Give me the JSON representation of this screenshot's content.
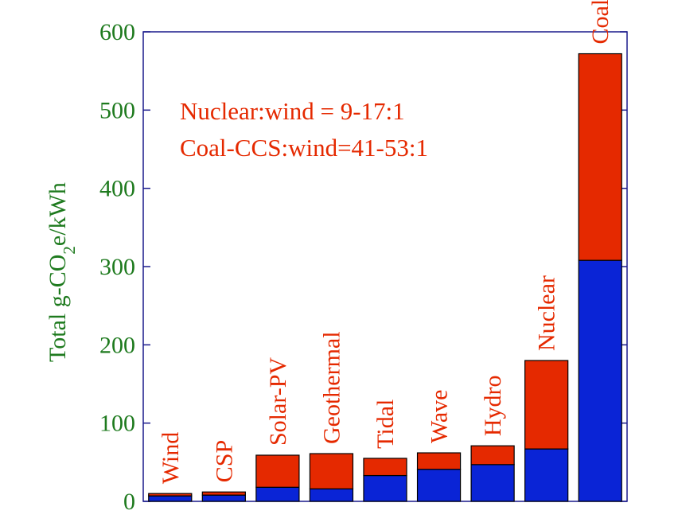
{
  "chart_data": {
    "type": "bar",
    "stacked": true,
    "categories": [
      "Wind",
      "CSP",
      "Solar-PV",
      "Geothermal",
      "Tidal",
      "Wave",
      "Hydro",
      "Nuclear",
      "Coal-CCS"
    ],
    "series": [
      {
        "values": [
          7,
          8,
          18,
          16,
          33,
          41,
          47,
          67,
          308
        ]
      },
      {
        "values": [
          3,
          4,
          41,
          45,
          22,
          21,
          24,
          113,
          264
        ]
      }
    ],
    "ylabel_main": "Total g-CO",
    "ylabel_sub": "2",
    "ylabel_end": "e/kWh",
    "ylim": [
      0,
      600
    ],
    "yticks": [
      "0",
      "100",
      "200",
      "300",
      "400",
      "500",
      "600"
    ],
    "annotations": [
      "Nuclear:wind = 9-17:1",
      "Coal-CCS:wind=41-53:1"
    ],
    "colors": {
      "series_1": "#0a24d6",
      "series_2": "#e52900",
      "labels": "#e52900",
      "axis_text": "#1e7a1e",
      "axis_line": "#1a1a8c"
    },
    "grid": false,
    "legend": "none"
  }
}
